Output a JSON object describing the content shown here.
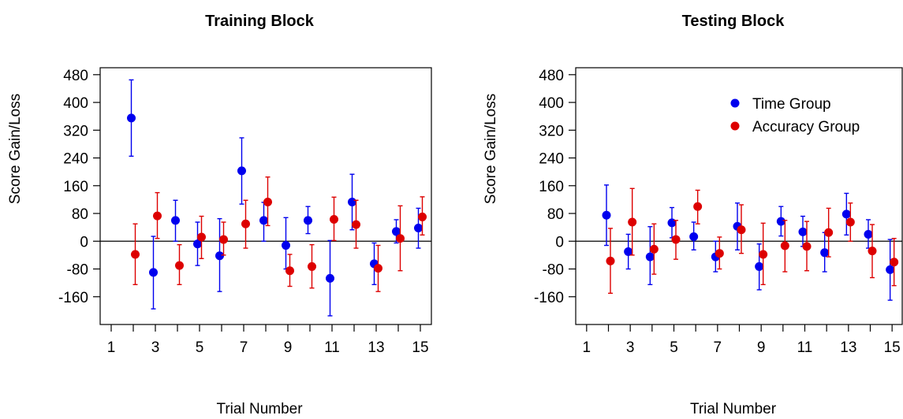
{
  "chart_data": [
    {
      "type": "scatter",
      "title": "Training Block",
      "xlabel": "Trial Number",
      "ylabel": "Score Gain/Loss",
      "xlim": [
        0.5,
        15.5
      ],
      "ylim": [
        -240,
        500
      ],
      "x_ticks": [
        1,
        2,
        3,
        4,
        5,
        6,
        7,
        8,
        9,
        10,
        11,
        12,
        13,
        14,
        15
      ],
      "x_tick_labels": [
        "1",
        "",
        "3",
        "",
        "5",
        "",
        "7",
        "",
        "9",
        "",
        "11",
        "",
        "13",
        "",
        "15"
      ],
      "y_ticks": [
        -160,
        -80,
        0,
        80,
        160,
        240,
        320,
        400,
        480
      ],
      "y_tick_labels": [
        "-160",
        "-80",
        "0",
        "80",
        "160",
        "240",
        "320",
        "400",
        "480"
      ],
      "reference_line": 0,
      "grid": false,
      "legend": null,
      "series": [
        {
          "color": "#0000ee",
          "x": [
            2,
            3,
            4,
            5,
            6,
            7,
            8,
            9,
            10,
            11,
            12,
            13,
            14,
            15
          ],
          "y": [
            355,
            -90,
            60,
            -8,
            -42,
            203,
            60,
            -12,
            60,
            -107,
            113,
            -65,
            28,
            38
          ],
          "err_low": [
            245,
            -195,
            0,
            -70,
            -145,
            107,
            0,
            -80,
            22,
            -215,
            33,
            -125,
            -5,
            -20
          ],
          "err_high": [
            465,
            14,
            118,
            55,
            65,
            298,
            112,
            68,
            100,
            2,
            193,
            -5,
            62,
            95
          ]
        },
        {
          "color": "#dd0000",
          "x": [
            2,
            3,
            4,
            5,
            6,
            7,
            8,
            9,
            10,
            11,
            12,
            13,
            14,
            15
          ],
          "y": [
            -38,
            73,
            -70,
            12,
            5,
            50,
            113,
            -85,
            -73,
            63,
            48,
            -78,
            8,
            70
          ],
          "err_low": [
            -125,
            8,
            -125,
            -50,
            -40,
            -20,
            45,
            -130,
            -135,
            2,
            -20,
            -145,
            -85,
            18
          ],
          "err_high": [
            50,
            140,
            -10,
            72,
            55,
            118,
            185,
            -38,
            -10,
            127,
            118,
            -12,
            102,
            128
          ]
        }
      ]
    },
    {
      "type": "scatter",
      "title": "Testing Block",
      "xlabel": "Trial Number",
      "ylabel": "Score Gain/Loss",
      "xlim": [
        0.5,
        15.5
      ],
      "ylim": [
        -240,
        500
      ],
      "x_ticks": [
        1,
        2,
        3,
        4,
        5,
        6,
        7,
        8,
        9,
        10,
        11,
        12,
        13,
        14,
        15
      ],
      "x_tick_labels": [
        "1",
        "",
        "3",
        "",
        "5",
        "",
        "7",
        "",
        "9",
        "",
        "11",
        "",
        "13",
        "",
        "15"
      ],
      "y_ticks": [
        -160,
        -80,
        0,
        80,
        160,
        240,
        320,
        400,
        480
      ],
      "y_tick_labels": [
        "-160",
        "-80",
        "0",
        "80",
        "160",
        "240",
        "320",
        "400",
        "480"
      ],
      "reference_line": 0,
      "grid": false,
      "legend": "top-right",
      "series": [
        {
          "name": "Time Group",
          "color": "#0000ee",
          "x": [
            2,
            3,
            4,
            5,
            6,
            7,
            8,
            9,
            10,
            11,
            12,
            13,
            14,
            15
          ],
          "y": [
            75,
            -30,
            -45,
            53,
            13,
            -45,
            43,
            -73,
            57,
            27,
            -33,
            78,
            20,
            -82
          ],
          "err_low": [
            -12,
            -80,
            -125,
            10,
            -25,
            -88,
            -25,
            -140,
            15,
            -15,
            -88,
            18,
            -20,
            -170
          ],
          "err_high": [
            162,
            20,
            42,
            97,
            55,
            0,
            110,
            -8,
            100,
            72,
            25,
            138,
            62,
            5
          ]
        },
        {
          "name": "Accuracy Group",
          "color": "#dd0000",
          "x": [
            2,
            3,
            4,
            5,
            6,
            7,
            8,
            9,
            10,
            11,
            12,
            13,
            14,
            15
          ],
          "y": [
            -57,
            55,
            -23,
            5,
            100,
            -35,
            33,
            -38,
            -13,
            -15,
            25,
            55,
            -28,
            -60
          ],
          "err_low": [
            -150,
            -40,
            -95,
            -52,
            50,
            -80,
            -35,
            -125,
            -88,
            -85,
            -45,
            0,
            -105,
            -128
          ],
          "err_high": [
            37,
            152,
            50,
            60,
            147,
            12,
            105,
            52,
            60,
            57,
            95,
            110,
            48,
            8
          ]
        }
      ]
    }
  ]
}
